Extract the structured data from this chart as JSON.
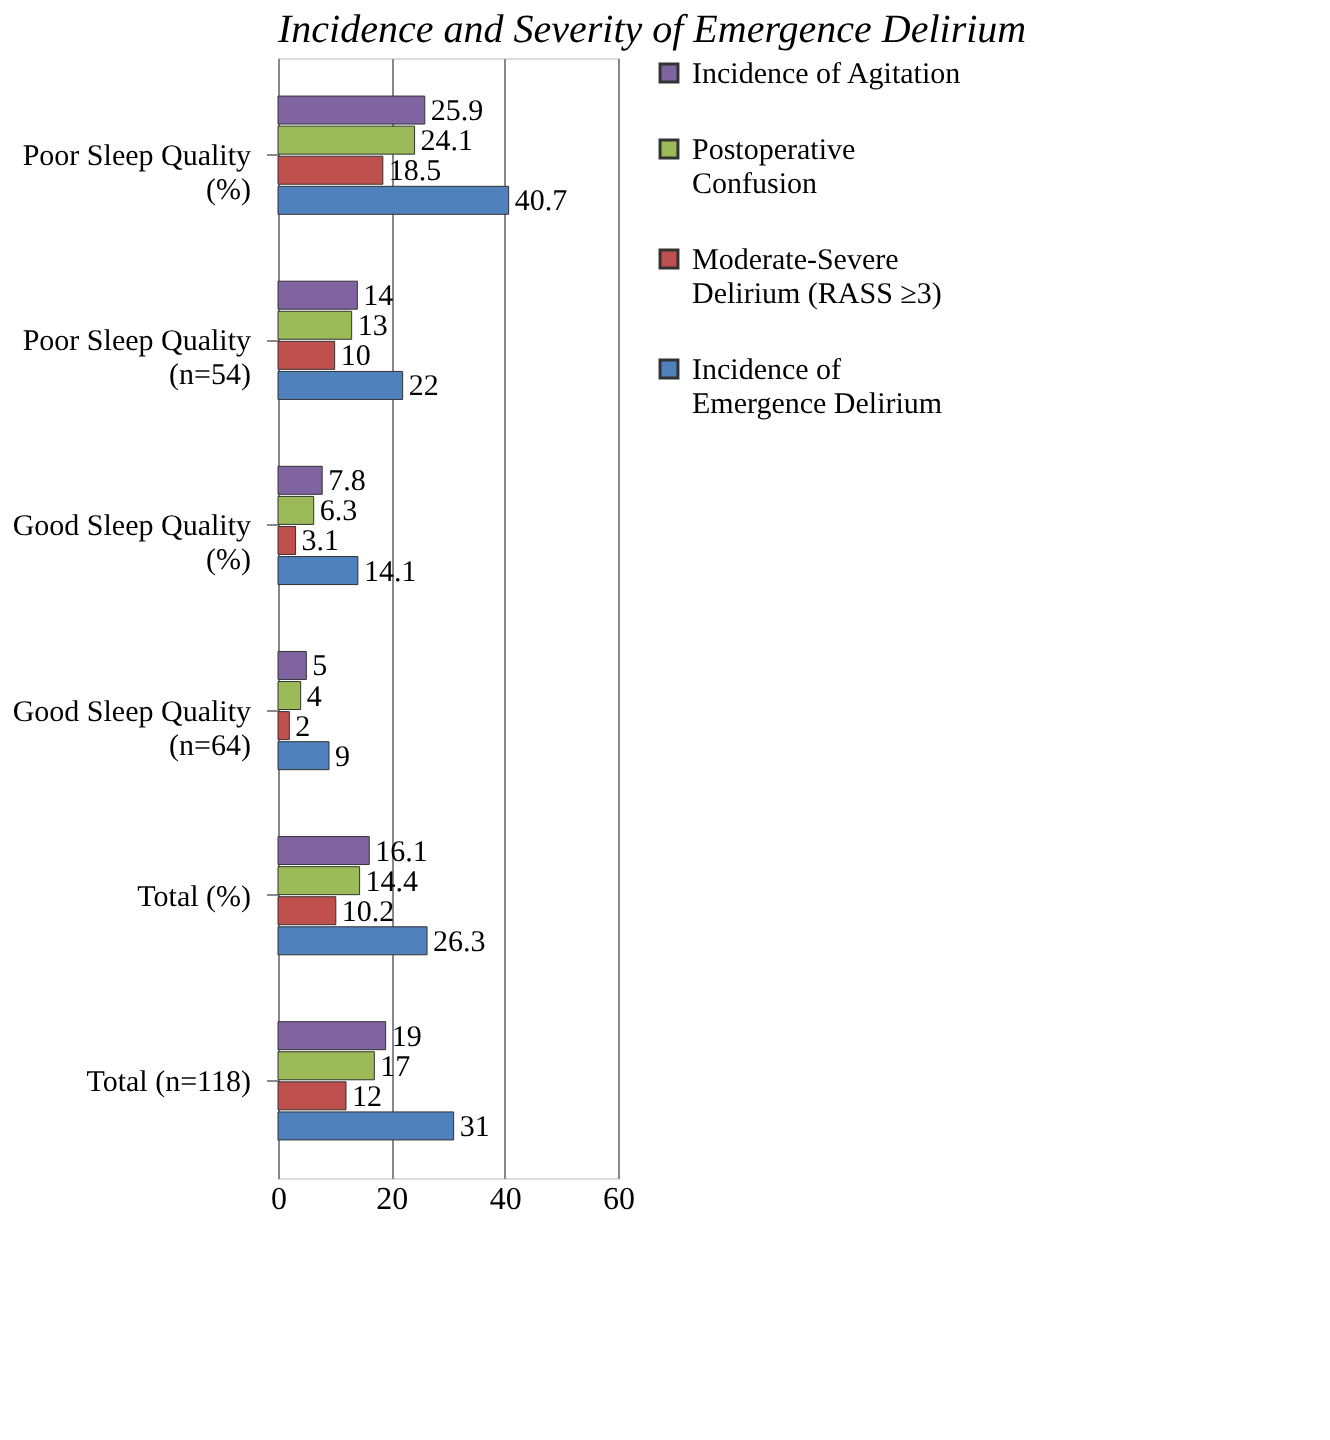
{
  "chart_data": {
    "type": "bar",
    "orientation": "horizontal",
    "title": "Incidence and Severity of Emergence Delirium",
    "categories": [
      "Poor Sleep Quality\n(%)",
      "Poor Sleep Quality\n(n=54)",
      "Good Sleep Quality\n(%)",
      "Good Sleep Quality\n(n=64)",
      "Total (%)",
      "Total (n=118)"
    ],
    "series": [
      {
        "name": "Incidence of Agitation",
        "color": "#8064a2",
        "values": [
          25.9,
          14,
          7.8,
          5,
          16.1,
          19
        ]
      },
      {
        "name": "Postoperative\nConfusion",
        "color": "#9bbb59",
        "values": [
          24.1,
          13,
          6.3,
          4,
          14.4,
          17
        ]
      },
      {
        "name": "Moderate-Severe\nDelirium (RASS ≥3)",
        "color": "#c0504d",
        "values": [
          18.5,
          10,
          3.1,
          2,
          10.2,
          12
        ]
      },
      {
        "name": "Incidence of\nEmergence Delirium",
        "color": "#4f81bd",
        "values": [
          40.7,
          22,
          14.1,
          9,
          26.3,
          31
        ]
      }
    ],
    "xlim": [
      0,
      60
    ],
    "xticks": [
      0,
      20,
      40,
      60
    ],
    "grid": "x",
    "legend": "right",
    "data_labels": true
  }
}
